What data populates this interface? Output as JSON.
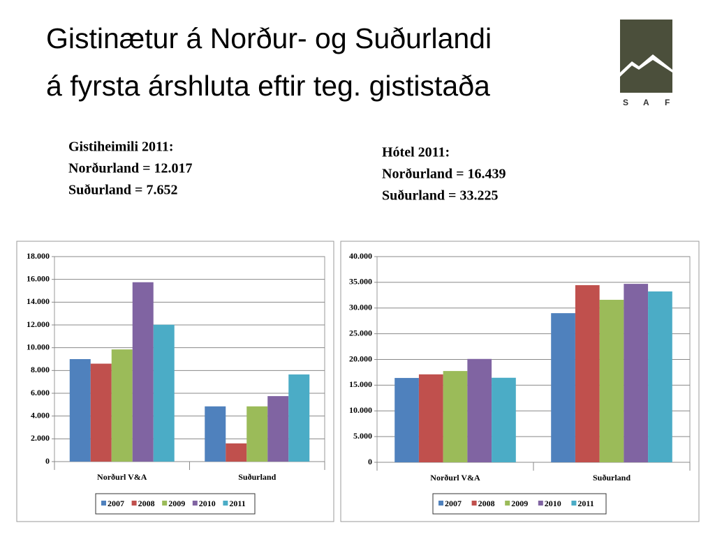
{
  "title": [
    "Gistinætur á Norður- og Suðurlandi",
    "á fyrsta árshluta eftir teg. gististaða"
  ],
  "logo": [
    "S",
    "A",
    "F"
  ],
  "notes": [
    [
      "Gistiheimili 2011:",
      "Norðurland  = 12.017",
      "Suðurland = 7.652"
    ],
    [
      "Hótel 2011:",
      "Norðurland =  16.439",
      "Suðurland = 33.225"
    ]
  ],
  "chart_data": [
    {
      "type": "bar",
      "categories": [
        "Norðurl V&A",
        "Suðurland"
      ],
      "series": [
        {
          "name": "2007",
          "color": "#4f81bd",
          "values": [
            9000,
            4850
          ]
        },
        {
          "name": "2008",
          "color": "#c0504d",
          "values": [
            8600,
            1600
          ]
        },
        {
          "name": "2009",
          "color": "#9bbb59",
          "values": [
            9850,
            4850
          ]
        },
        {
          "name": "2010",
          "color": "#8064a2",
          "values": [
            15750,
            5750
          ]
        },
        {
          "name": "2011",
          "color": "#4bacc6",
          "values": [
            12017,
            7652
          ]
        }
      ],
      "ylim": [
        0,
        18000
      ],
      "yticks": [
        0,
        {
          "value": 2000,
          "label": "2.000"
        },
        {
          "value": 4000,
          "label": "4.000"
        },
        {
          "value": 6000,
          "label": "6.000"
        },
        {
          "value": 8000,
          "label": "8.000"
        },
        {
          "value": 10000,
          "label": "10.000"
        },
        {
          "value": 12000,
          "label": "12.000"
        },
        {
          "value": 14000,
          "label": "14.000"
        },
        {
          "value": 16000,
          "label": "16.000"
        },
        {
          "value": 18000,
          "label": "18.000"
        }
      ],
      "grid": true,
      "legend": "bottom"
    },
    {
      "type": "bar",
      "categories": [
        "Norðurl V&A",
        "Suðurland"
      ],
      "series": [
        {
          "name": "2007",
          "color": "#4f81bd",
          "values": [
            16400,
            29000
          ]
        },
        {
          "name": "2008",
          "color": "#c0504d",
          "values": [
            17100,
            34450
          ]
        },
        {
          "name": "2009",
          "color": "#9bbb59",
          "values": [
            17750,
            31600
          ]
        },
        {
          "name": "2010",
          "color": "#8064a2",
          "values": [
            20100,
            34700
          ]
        },
        {
          "name": "2011",
          "color": "#4bacc6",
          "values": [
            16439,
            33225
          ]
        }
      ],
      "ylim": [
        0,
        40000
      ],
      "yticks": [
        0,
        {
          "value": 5000,
          "label": "5.000"
        },
        {
          "value": 10000,
          "label": "10.000"
        },
        {
          "value": 15000,
          "label": "15.000"
        },
        {
          "value": 20000,
          "label": "20.000"
        },
        {
          "value": 25000,
          "label": "25.000"
        },
        {
          "value": 30000,
          "label": "30.000"
        },
        {
          "value": 35000,
          "label": "35.000"
        },
        {
          "value": 40000,
          "label": "40.000"
        }
      ],
      "grid": true,
      "legend": "bottom"
    }
  ]
}
